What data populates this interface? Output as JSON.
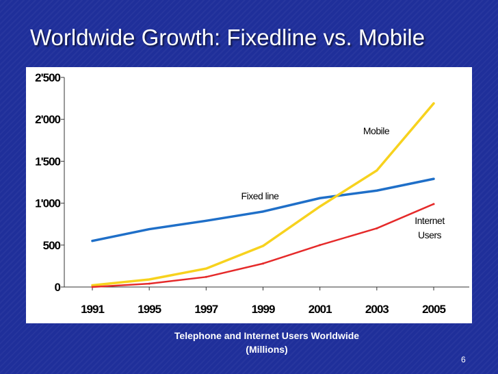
{
  "slide": {
    "title": "Worldwide Growth: Fixedline vs. Mobile",
    "caption_line1": "Telephone and Internet Users Worldwide",
    "caption_line2": "(Millions)",
    "page_number": "6"
  },
  "chart_data": {
    "type": "line",
    "title": "",
    "xlabel": "",
    "ylabel": "",
    "categories": [
      "1991",
      "1995",
      "1997",
      "1999",
      "2001",
      "2003",
      "2005"
    ],
    "ylim": [
      0,
      2500
    ],
    "yticks": [
      0,
      500,
      1000,
      1500,
      2000,
      2500
    ],
    "ytick_labels": [
      "0",
      "500",
      "1'000",
      "1'500",
      "2'000",
      "2'500"
    ],
    "grid": false,
    "series": [
      {
        "name": "Fixed line",
        "color": "#1f6fc8",
        "values": [
          550,
          690,
          790,
          900,
          1060,
          1150,
          1290
        ]
      },
      {
        "name": "Mobile",
        "color": "#f7d21e",
        "values": [
          20,
          90,
          220,
          490,
          960,
          1390,
          2190
        ]
      },
      {
        "name": "Internet Users",
        "color": "#e52a2a",
        "values": [
          0,
          40,
          120,
          280,
          500,
          700,
          990
        ]
      }
    ],
    "annotations": [
      {
        "text": "Mobile",
        "series": "Mobile"
      },
      {
        "text": "Fixed line",
        "series": "Fixed line"
      },
      {
        "text": "Internet",
        "series": "Internet Users"
      },
      {
        "text": "Users",
        "series": "Internet Users"
      }
    ]
  }
}
